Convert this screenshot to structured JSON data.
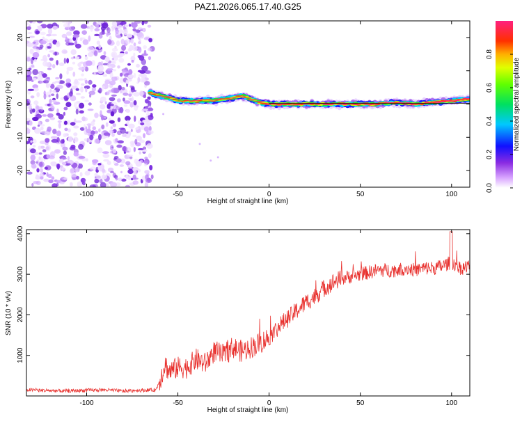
{
  "page": {
    "title": "PAZ1.2026.065.17.40.G25"
  },
  "chart_data": [
    {
      "type": "heatmap",
      "title": "PAZ1.2026.065.17.40.G25",
      "xlabel": "Height of straight line (km)",
      "ylabel": "Frequency (Hz)",
      "xlim": [
        -133,
        110
      ],
      "ylim": [
        -25,
        25
      ],
      "xticks": [
        -100,
        -50,
        0,
        50,
        100
      ],
      "yticks": [
        -20,
        -10,
        0,
        10,
        20
      ],
      "noise_region_x": [
        -133,
        -64
      ],
      "ridge": {
        "description": "dominant frequency track",
        "x": [
          -65,
          -60,
          -55,
          -50,
          -45,
          -40,
          -35,
          -30,
          -25,
          -20,
          -15,
          -10,
          -5,
          0,
          10,
          20,
          30,
          40,
          50,
          60,
          70,
          80,
          90,
          100,
          110
        ],
        "y": [
          3.5,
          2.5,
          2.0,
          1.0,
          1.0,
          0.8,
          1.2,
          1.0,
          1.5,
          1.8,
          2.5,
          1.5,
          0.5,
          0.0,
          0.0,
          0.0,
          0.0,
          0.0,
          0.0,
          0.0,
          0.5,
          0.0,
          0.5,
          1.0,
          1.5
        ]
      },
      "colorbar": {
        "label": "Normalized spectral amplitude",
        "range": [
          0.0,
          1.0
        ],
        "ticks": [
          0.0,
          0.2,
          0.4,
          0.6,
          0.8
        ],
        "tick_labels": [
          "0.0",
          "0.2",
          "0.4",
          "0.6",
          "0.8"
        ]
      },
      "tick_labels_x": [
        "-100",
        "-50",
        "0",
        "50",
        "100"
      ],
      "tick_labels_y": [
        "-20",
        "-10",
        "0",
        "10",
        "20"
      ]
    },
    {
      "type": "line",
      "xlabel": "Height of straight line (km)",
      "ylabel": "SNR (10 * v/v)",
      "xlim": [
        -133,
        110
      ],
      "ylim": [
        0,
        4100
      ],
      "xticks": [
        -100,
        -50,
        0,
        50,
        100
      ],
      "yticks": [
        1000,
        2000,
        3000,
        4000
      ],
      "tick_labels_x": [
        "-100",
        "-50",
        "0",
        "50",
        "100"
      ],
      "tick_labels_y": [
        "1000",
        "2000",
        "3000",
        "4000"
      ],
      "series": [
        {
          "name": "SNR",
          "color": "#e8312e",
          "x": [
            -133,
            -120,
            -110,
            -100,
            -90,
            -80,
            -70,
            -62,
            -59,
            -57,
            -55,
            -50,
            -45,
            -40,
            -35,
            -30,
            -25,
            -20,
            -15,
            -10,
            -5,
            0,
            5,
            10,
            15,
            20,
            25,
            30,
            35,
            40,
            45,
            50,
            55,
            60,
            65,
            70,
            75,
            80,
            85,
            90,
            95,
            100,
            105,
            110
          ],
          "y": [
            150,
            130,
            120,
            140,
            150,
            120,
            140,
            150,
            500,
            800,
            600,
            700,
            700,
            900,
            800,
            1100,
            1000,
            1200,
            1100,
            1200,
            1300,
            1450,
            1700,
            1900,
            2100,
            2300,
            2450,
            2650,
            2800,
            2900,
            2950,
            3000,
            3050,
            3100,
            3100,
            3100,
            3150,
            3100,
            3150,
            3150,
            3200,
            3300,
            3150,
            3200
          ]
        }
      ]
    }
  ],
  "colors": {
    "noise": "#8a2be2",
    "line": "#e8312e",
    "axis": "#000000"
  }
}
